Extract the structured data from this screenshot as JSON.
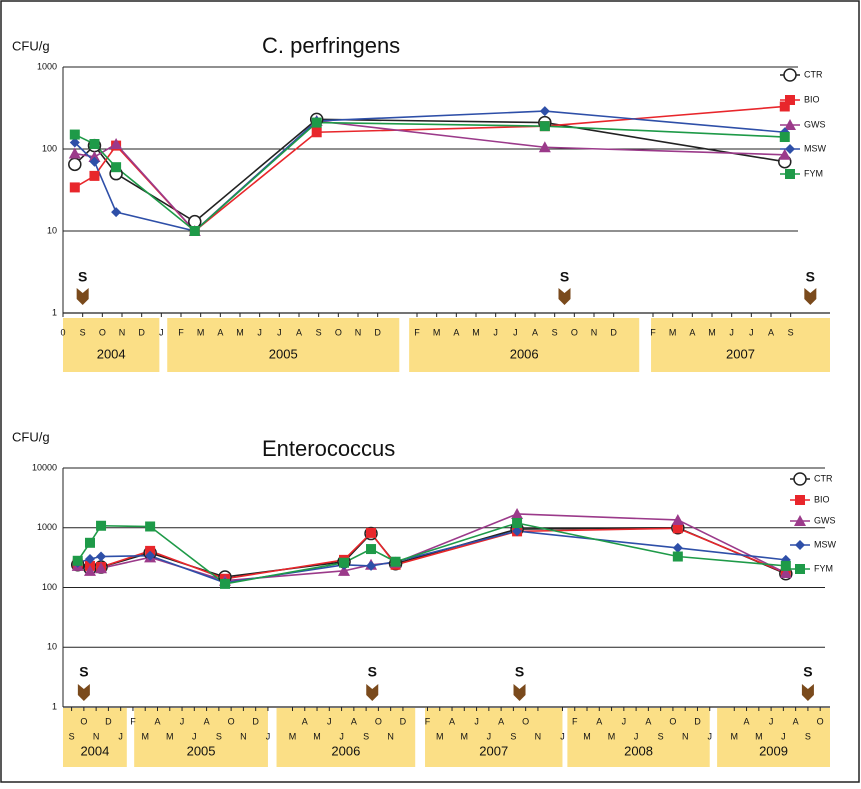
{
  "chart_data": [
    {
      "type": "line",
      "title": "C. perfringens",
      "y_label": "CFU/g",
      "log": true,
      "grid": true,
      "legend": "right",
      "ylim": [
        1,
        1000
      ],
      "yticks": [
        1,
        10,
        100,
        1000
      ],
      "xlim": [
        7,
        46
      ],
      "xticks": [
        {
          "value": 7,
          "label": "0"
        },
        {
          "value": 8,
          "label": "S"
        },
        {
          "value": 9,
          "label": "O"
        },
        {
          "value": 10,
          "label": "N"
        },
        {
          "value": 11,
          "label": "D"
        },
        {
          "value": 12,
          "label": "J"
        },
        {
          "value": 13,
          "label": "F"
        },
        {
          "value": 14,
          "label": "M"
        },
        {
          "value": 15,
          "label": "A"
        },
        {
          "value": 16,
          "label": "M"
        },
        {
          "value": 17,
          "label": "J"
        },
        {
          "value": 18,
          "label": "J"
        },
        {
          "value": 19,
          "label": "A"
        },
        {
          "value": 20,
          "label": "S"
        },
        {
          "value": 21,
          "label": "O"
        },
        {
          "value": 22,
          "label": "N"
        },
        {
          "value": 23,
          "label": "D"
        },
        {
          "value": 25,
          "label": "F"
        },
        {
          "value": 26,
          "label": "M"
        },
        {
          "value": 27,
          "label": "A"
        },
        {
          "value": 28,
          "label": "M"
        },
        {
          "value": 29,
          "label": "J"
        },
        {
          "value": 30,
          "label": "J"
        },
        {
          "value": 31,
          "label": "A"
        },
        {
          "value": 32,
          "label": "S"
        },
        {
          "value": 33,
          "label": "O"
        },
        {
          "value": 34,
          "label": "N"
        },
        {
          "value": 35,
          "label": "D"
        },
        {
          "value": 37,
          "label": "F"
        },
        {
          "value": 38,
          "label": "M"
        },
        {
          "value": 39,
          "label": "A"
        },
        {
          "value": 40,
          "label": "M"
        },
        {
          "value": 41,
          "label": "J"
        },
        {
          "value": 42,
          "label": "J"
        },
        {
          "value": 43,
          "label": "A"
        },
        {
          "value": 44,
          "label": "S"
        }
      ],
      "year_bands": [
        {
          "label": "2004",
          "from": 7,
          "to": 11.9
        },
        {
          "label": "2005",
          "from": 12.3,
          "to": 24.1
        },
        {
          "label": "2006",
          "from": 24.6,
          "to": 36.3
        },
        {
          "label": "2007",
          "from": 36.9,
          "to": 46
        }
      ],
      "annotations": [
        {
          "label": "S",
          "x": 8
        },
        {
          "label": "S",
          "x": 32.5
        },
        {
          "label": "S",
          "x": 45
        }
      ],
      "x": [
        7.6,
        8.6,
        9.7,
        13.7,
        19.9,
        31.5,
        43.7
      ],
      "series": [
        {
          "name": "CTR",
          "color": "#222222",
          "marker": "circle",
          "values": [
            65,
            110,
            50,
            13,
            230,
            210,
            70
          ]
        },
        {
          "name": "BIO",
          "color": "#e8262b",
          "marker": "square",
          "values": [
            34,
            47,
            110,
            10,
            160,
            190,
            330
          ]
        },
        {
          "name": "GWS",
          "color": "#9b3a8a",
          "marker": "triangle",
          "values": [
            88,
            80,
            115,
            10,
            220,
            105,
            85
          ]
        },
        {
          "name": "MSW",
          "color": "#2e4fa8",
          "marker": "diamond",
          "values": [
            120,
            70,
            17,
            10,
            220,
            290,
            160
          ]
        },
        {
          "name": "FYM",
          "color": "#1e9a48",
          "marker": "square",
          "values": [
            150,
            115,
            60,
            10,
            210,
            190,
            140
          ]
        }
      ]
    },
    {
      "type": "line",
      "title": "Enterococcus",
      "y_label": "CFU/g",
      "log": true,
      "grid": true,
      "legend": "right",
      "ylim": [
        1,
        10000
      ],
      "yticks": [
        1,
        10,
        100,
        1000,
        10000
      ],
      "xlim": [
        7.3,
        69.8
      ],
      "xticks": [
        {
          "value": 8,
          "label": "S"
        },
        {
          "value": 9,
          "label": "O"
        },
        {
          "value": 10,
          "label": "N"
        },
        {
          "value": 11,
          "label": "D"
        },
        {
          "value": 12,
          "label": "J"
        },
        {
          "value": 13,
          "label": "F"
        },
        {
          "value": 14,
          "label": "M"
        },
        {
          "value": 15,
          "label": "A"
        },
        {
          "value": 16,
          "label": "M"
        },
        {
          "value": 17,
          "label": "J"
        },
        {
          "value": 18,
          "label": "J"
        },
        {
          "value": 19,
          "label": "A"
        },
        {
          "value": 20,
          "label": "S"
        },
        {
          "value": 21,
          "label": "O"
        },
        {
          "value": 22,
          "label": "N"
        },
        {
          "value": 23,
          "label": "D"
        },
        {
          "value": 24,
          "label": "J"
        },
        {
          "value": 26,
          "label": "M"
        },
        {
          "value": 27,
          "label": "A"
        },
        {
          "value": 28,
          "label": "M"
        },
        {
          "value": 29,
          "label": "J"
        },
        {
          "value": 30,
          "label": "J"
        },
        {
          "value": 31,
          "label": "A"
        },
        {
          "value": 32,
          "label": "S"
        },
        {
          "value": 33,
          "label": "O"
        },
        {
          "value": 34,
          "label": "N"
        },
        {
          "value": 35,
          "label": "D"
        },
        {
          "value": 37,
          "label": "F"
        },
        {
          "value": 38,
          "label": "M"
        },
        {
          "value": 39,
          "label": "A"
        },
        {
          "value": 40,
          "label": "M"
        },
        {
          "value": 41,
          "label": "J"
        },
        {
          "value": 42,
          "label": "J"
        },
        {
          "value": 43,
          "label": "A"
        },
        {
          "value": 44,
          "label": "S"
        },
        {
          "value": 45,
          "label": "O"
        },
        {
          "value": 46,
          "label": "N"
        },
        {
          "value": 48,
          "label": "J"
        },
        {
          "value": 49,
          "label": "F"
        },
        {
          "value": 50,
          "label": "M"
        },
        {
          "value": 51,
          "label": "A"
        },
        {
          "value": 52,
          "label": "M"
        },
        {
          "value": 53,
          "label": "J"
        },
        {
          "value": 54,
          "label": "J"
        },
        {
          "value": 55,
          "label": "A"
        },
        {
          "value": 56,
          "label": "S"
        },
        {
          "value": 57,
          "label": "O"
        },
        {
          "value": 58,
          "label": "N"
        },
        {
          "value": 59,
          "label": "D"
        },
        {
          "value": 60,
          "label": "J"
        },
        {
          "value": 62,
          "label": "M"
        },
        {
          "value": 63,
          "label": "A"
        },
        {
          "value": 64,
          "label": "M"
        },
        {
          "value": 65,
          "label": "J"
        },
        {
          "value": 66,
          "label": "J"
        },
        {
          "value": 67,
          "label": "A"
        },
        {
          "value": 68,
          "label": "S"
        },
        {
          "value": 69,
          "label": "O"
        }
      ],
      "year_bands": [
        {
          "label": "2004",
          "from": 7.3,
          "to": 12.5
        },
        {
          "label": "2005",
          "from": 13.1,
          "to": 24
        },
        {
          "label": "2006",
          "from": 24.7,
          "to": 36
        },
        {
          "label": "2007",
          "from": 36.8,
          "to": 48
        },
        {
          "label": "2008",
          "from": 48.4,
          "to": 60
        },
        {
          "label": "2009",
          "from": 60.6,
          "to": 69.8
        }
      ],
      "annotations": [
        {
          "label": "S",
          "x": 9
        },
        {
          "label": "S",
          "x": 32.5
        },
        {
          "label": "S",
          "x": 44.5
        },
        {
          "label": "S",
          "x": 68
        }
      ],
      "x": [
        8.5,
        9.5,
        10.4,
        14.4,
        20.5,
        30.2,
        32.4,
        34.4,
        44.3,
        57.4,
        66.2
      ],
      "series": [
        {
          "name": "CTR",
          "color": "#222222",
          "marker": "circle",
          "values": [
            240,
            210,
            220,
            380,
            150,
            270,
            800,
            250,
            950,
            1000,
            170
          ]
        },
        {
          "name": "BIO",
          "color": "#e8262b",
          "marker": "square",
          "values": [
            250,
            230,
            220,
            410,
            140,
            290,
            820,
            240,
            870,
            980,
            175
          ]
        },
        {
          "name": "GWS",
          "color": "#9b3a8a",
          "marker": "triangle",
          "values": [
            230,
            190,
            210,
            320,
            130,
            190,
            240,
            260,
            1700,
            1350,
            175
          ]
        },
        {
          "name": "MSW",
          "color": "#2e4fa8",
          "marker": "diamond",
          "values": [
            260,
            300,
            330,
            340,
            120,
            240,
            230,
            270,
            880,
            460,
            290
          ]
        },
        {
          "name": "FYM",
          "color": "#1e9a48",
          "marker": "square",
          "values": [
            280,
            560,
            1080,
            1050,
            115,
            260,
            440,
            270,
            1200,
            330,
            230
          ]
        }
      ]
    }
  ]
}
